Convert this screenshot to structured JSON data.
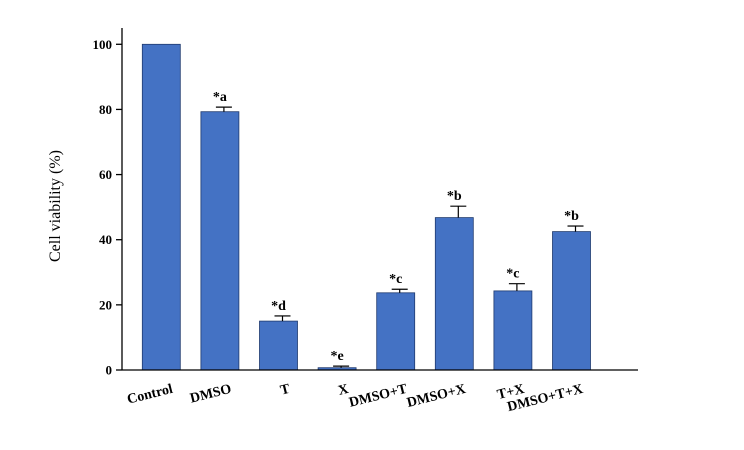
{
  "chart_data": {
    "type": "bar",
    "title": "",
    "xlabel": "",
    "ylabel": "Cell viability (%)",
    "ylim": [
      0,
      105
    ],
    "yticks": [
      0,
      20,
      40,
      60,
      80,
      100
    ],
    "grid": false,
    "bar_color": "#4472C4",
    "categories": [
      "Control",
      "DMSO",
      "T",
      "X",
      "DMSO+T",
      "DMSO+X",
      "T+X",
      "DMSO+T+X"
    ],
    "values": [
      100,
      79.3,
      15.0,
      0.7,
      23.7,
      46.8,
      24.3,
      42.5
    ],
    "errors": [
      0,
      1.4,
      1.6,
      0.5,
      1.1,
      3.5,
      2.2,
      1.7
    ],
    "annotations": [
      "",
      "*a",
      "*d",
      "*e",
      "*c",
      "*b",
      "*c",
      "*b"
    ]
  }
}
